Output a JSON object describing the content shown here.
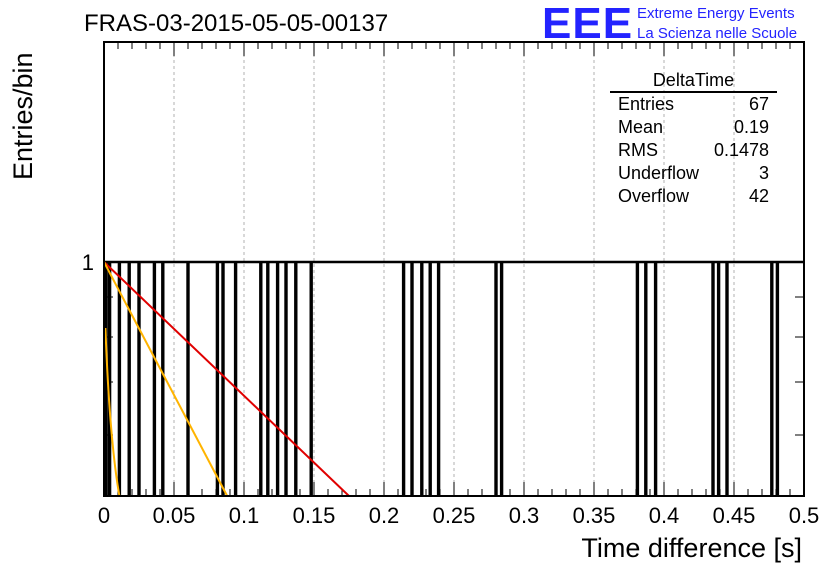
{
  "header": {
    "title": "FRAS-03-2015-05-05-00137",
    "logo_text": "EEE",
    "logo_line1": "Extreme Energy Events",
    "logo_line2": "La Scienza nelle Scuole"
  },
  "stats_box": {
    "title": "DeltaTime",
    "rows": [
      {
        "label": "Entries",
        "value": "67"
      },
      {
        "label": "Mean",
        "value": "0.19"
      },
      {
        "label": "RMS",
        "value": "0.1478"
      },
      {
        "label": "Underflow",
        "value": "3"
      },
      {
        "label": "Overflow",
        "value": "42"
      }
    ]
  },
  "chart_data": {
    "type": "bar",
    "title": "FRAS-03-2015-05-05-00137",
    "xlabel": "Time difference [s]",
    "ylabel": "Entries/bin",
    "xlim": [
      0,
      0.5
    ],
    "y_scale": "log",
    "y_tick_labels": [
      "1"
    ],
    "x_ticks": [
      0,
      0.05,
      0.1,
      0.15,
      0.2,
      0.25,
      0.3,
      0.35,
      0.4,
      0.45,
      0.5
    ],
    "x_tick_labels": [
      "0",
      "0.05",
      "0.1",
      "0.15",
      "0.2",
      "0.25",
      "0.3",
      "0.35",
      "0.4",
      "0.45",
      "0.5"
    ],
    "grid": true,
    "bin_width": 0.001,
    "filled_bins": [
      0.0015,
      0.004,
      0.011,
      0.018,
      0.025,
      0.036,
      0.042,
      0.06,
      0.081,
      0.085,
      0.094,
      0.112,
      0.117,
      0.124,
      0.13,
      0.137,
      0.148,
      0.214,
      0.22,
      0.227,
      0.233,
      0.239,
      0.28,
      0.284,
      0.381,
      0.387,
      0.394,
      0.435,
      0.439,
      0.445,
      0.477,
      0.481
    ],
    "bin_value": 1,
    "curves": [
      {
        "color": "#e00000",
        "x": [
          0.0,
          0.17
        ],
        "y_end_fraction": 0.0
      },
      {
        "color": "#ffb400",
        "x": [
          0.0,
          0.086
        ],
        "y_end_fraction": 0.0
      },
      {
        "color": "#ffb400",
        "x": [
          0.001,
          0.011
        ],
        "y_end_fraction": 0.0
      }
    ],
    "colors": {
      "hist": "#000000",
      "red_fit": "#e00000",
      "orange_fit": "#ffb400",
      "grid": "#b0b0b0"
    }
  }
}
